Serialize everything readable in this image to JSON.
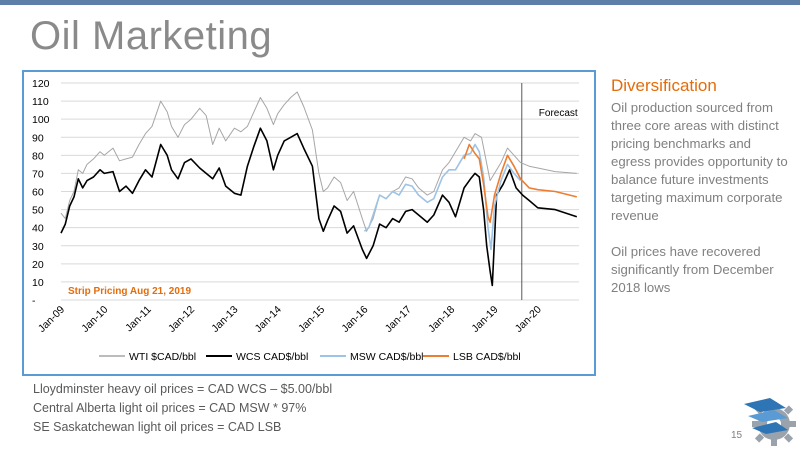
{
  "slide": {
    "title": "Oil Marketing",
    "page_number": "15",
    "colors": {
      "accent": "#e46c0a",
      "frame": "#5b9bd5",
      "top_rule": "#5b7fa6"
    }
  },
  "sidebar": {
    "heading": "Diversification",
    "paragraph1": "Oil production sourced from three core areas with distinct pricing benchmarks and egress provides opportunity to balance future investments targeting maximum corporate revenue",
    "paragraph2": "Oil prices have recovered significantly from December 2018 lows"
  },
  "footnotes": [
    "Lloydminster heavy oil prices = CAD WCS – $5.00/bbl",
    "Central Alberta light oil prices = CAD MSW * 97%",
    "SE Saskatchewan light oil prices = CAD LSB"
  ],
  "chart_data": {
    "type": "line",
    "yticks": [
      0,
      10,
      20,
      30,
      40,
      50,
      60,
      70,
      80,
      90,
      100,
      110,
      120
    ],
    "ytick_labels": [
      "-",
      "10",
      "20",
      "30",
      "40",
      "50",
      "60",
      "70",
      "80",
      "90",
      "100",
      "110",
      "120"
    ],
    "ylim": [
      0,
      120
    ],
    "xlim": [
      2009.0,
      2020.95
    ],
    "xticks": [
      {
        "x": 2009.0,
        "label": "Jan-09"
      },
      {
        "x": 2010.0,
        "label": "Jan-10"
      },
      {
        "x": 2011.0,
        "label": "Jan-11"
      },
      {
        "x": 2012.0,
        "label": "Jan-12"
      },
      {
        "x": 2013.0,
        "label": "Jan-13"
      },
      {
        "x": 2014.0,
        "label": "Jan-14"
      },
      {
        "x": 2015.0,
        "label": "Jan-15"
      },
      {
        "x": 2016.0,
        "label": "Jan-16"
      },
      {
        "x": 2017.0,
        "label": "Jan-17"
      },
      {
        "x": 2018.0,
        "label": "Jan-18"
      },
      {
        "x": 2019.0,
        "label": "Jan-19"
      },
      {
        "x": 2020.0,
        "label": "Jan-20"
      }
    ],
    "grid": true,
    "forecast_line_x": 2019.63,
    "forecast_label": "Forecast",
    "strip_label": "Strip Pricing Aug 21, 2019",
    "legend_position": "bottom",
    "series": [
      {
        "name": "WTI $CAD/bbl",
        "color": "#a6a6a6",
        "width": 1,
        "points": [
          [
            2009.0,
            48
          ],
          [
            2009.1,
            45
          ],
          [
            2009.2,
            55
          ],
          [
            2009.3,
            60
          ],
          [
            2009.4,
            72
          ],
          [
            2009.5,
            70
          ],
          [
            2009.6,
            75
          ],
          [
            2009.75,
            78
          ],
          [
            2009.9,
            82
          ],
          [
            2010.0,
            80
          ],
          [
            2010.2,
            84
          ],
          [
            2010.35,
            77
          ],
          [
            2010.5,
            78
          ],
          [
            2010.65,
            79
          ],
          [
            2010.8,
            86
          ],
          [
            2010.95,
            92
          ],
          [
            2011.1,
            96
          ],
          [
            2011.3,
            110
          ],
          [
            2011.45,
            104
          ],
          [
            2011.55,
            96
          ],
          [
            2011.7,
            90
          ],
          [
            2011.85,
            97
          ],
          [
            2012.0,
            100
          ],
          [
            2012.2,
            106
          ],
          [
            2012.35,
            102
          ],
          [
            2012.5,
            86
          ],
          [
            2012.65,
            95
          ],
          [
            2012.8,
            88
          ],
          [
            2013.0,
            95
          ],
          [
            2013.15,
            93
          ],
          [
            2013.3,
            96
          ],
          [
            2013.45,
            104
          ],
          [
            2013.6,
            112
          ],
          [
            2013.75,
            106
          ],
          [
            2013.9,
            97
          ],
          [
            2014.0,
            103
          ],
          [
            2014.15,
            108
          ],
          [
            2014.3,
            112
          ],
          [
            2014.45,
            115
          ],
          [
            2014.6,
            107
          ],
          [
            2014.8,
            94
          ],
          [
            2014.95,
            70
          ],
          [
            2015.05,
            60
          ],
          [
            2015.15,
            62
          ],
          [
            2015.3,
            68
          ],
          [
            2015.45,
            65
          ],
          [
            2015.6,
            55
          ],
          [
            2015.75,
            60
          ],
          [
            2015.95,
            45
          ],
          [
            2016.05,
            38
          ],
          [
            2016.2,
            45
          ],
          [
            2016.35,
            58
          ],
          [
            2016.5,
            56
          ],
          [
            2016.65,
            60
          ],
          [
            2016.8,
            62
          ],
          [
            2016.95,
            68
          ],
          [
            2017.1,
            67
          ],
          [
            2017.25,
            62
          ],
          [
            2017.45,
            58
          ],
          [
            2017.6,
            60
          ],
          [
            2017.8,
            72
          ],
          [
            2017.95,
            76
          ],
          [
            2018.1,
            82
          ],
          [
            2018.3,
            90
          ],
          [
            2018.45,
            88
          ],
          [
            2018.55,
            92
          ],
          [
            2018.7,
            90
          ],
          [
            2018.8,
            78
          ],
          [
            2018.9,
            66
          ],
          [
            2019.0,
            70
          ],
          [
            2019.15,
            76
          ],
          [
            2019.3,
            84
          ],
          [
            2019.45,
            80
          ],
          [
            2019.6,
            76
          ],
          [
            2019.8,
            74
          ],
          [
            2020.0,
            73
          ],
          [
            2020.4,
            71
          ],
          [
            2020.9,
            70
          ]
        ]
      },
      {
        "name": "WCS CAD$/bbl",
        "color": "#000000",
        "width": 1.6,
        "points": [
          [
            2009.0,
            37
          ],
          [
            2009.1,
            42
          ],
          [
            2009.2,
            52
          ],
          [
            2009.3,
            57
          ],
          [
            2009.4,
            67
          ],
          [
            2009.5,
            62
          ],
          [
            2009.6,
            66
          ],
          [
            2009.75,
            68
          ],
          [
            2009.9,
            72
          ],
          [
            2010.0,
            70
          ],
          [
            2010.2,
            71
          ],
          [
            2010.35,
            60
          ],
          [
            2010.5,
            63
          ],
          [
            2010.65,
            59
          ],
          [
            2010.8,
            66
          ],
          [
            2010.95,
            72
          ],
          [
            2011.1,
            68
          ],
          [
            2011.3,
            86
          ],
          [
            2011.45,
            80
          ],
          [
            2011.55,
            72
          ],
          [
            2011.7,
            67
          ],
          [
            2011.85,
            76
          ],
          [
            2012.0,
            78
          ],
          [
            2012.2,
            73
          ],
          [
            2012.35,
            70
          ],
          [
            2012.5,
            67
          ],
          [
            2012.65,
            73
          ],
          [
            2012.8,
            63
          ],
          [
            2013.0,
            59
          ],
          [
            2013.15,
            58
          ],
          [
            2013.3,
            74
          ],
          [
            2013.45,
            85
          ],
          [
            2013.6,
            95
          ],
          [
            2013.75,
            88
          ],
          [
            2013.9,
            72
          ],
          [
            2014.0,
            80
          ],
          [
            2014.15,
            88
          ],
          [
            2014.3,
            90
          ],
          [
            2014.45,
            92
          ],
          [
            2014.6,
            84
          ],
          [
            2014.8,
            74
          ],
          [
            2014.95,
            45
          ],
          [
            2015.05,
            38
          ],
          [
            2015.15,
            44
          ],
          [
            2015.3,
            52
          ],
          [
            2015.45,
            49
          ],
          [
            2015.6,
            37
          ],
          [
            2015.75,
            41
          ],
          [
            2015.95,
            28
          ],
          [
            2016.05,
            23
          ],
          [
            2016.2,
            30
          ],
          [
            2016.35,
            42
          ],
          [
            2016.5,
            40
          ],
          [
            2016.65,
            45
          ],
          [
            2016.8,
            43
          ],
          [
            2016.95,
            49
          ],
          [
            2017.1,
            50
          ],
          [
            2017.25,
            47
          ],
          [
            2017.45,
            43
          ],
          [
            2017.6,
            47
          ],
          [
            2017.8,
            58
          ],
          [
            2017.95,
            54
          ],
          [
            2018.1,
            46
          ],
          [
            2018.3,
            62
          ],
          [
            2018.45,
            67
          ],
          [
            2018.55,
            70
          ],
          [
            2018.65,
            68
          ],
          [
            2018.75,
            50
          ],
          [
            2018.82,
            30
          ],
          [
            2018.9,
            16
          ],
          [
            2018.95,
            8
          ],
          [
            2019.05,
            58
          ],
          [
            2019.2,
            64
          ],
          [
            2019.35,
            72
          ],
          [
            2019.5,
            62
          ],
          [
            2019.65,
            58
          ],
          [
            2019.8,
            55
          ],
          [
            2020.0,
            51
          ],
          [
            2020.4,
            50
          ],
          [
            2020.9,
            46
          ]
        ]
      },
      {
        "name": "MSW CAD$/bbl",
        "color": "#9dc3e6",
        "width": 1.6,
        "points": [
          [
            2016.0,
            38
          ],
          [
            2016.1,
            40
          ],
          [
            2016.2,
            47
          ],
          [
            2016.35,
            58
          ],
          [
            2016.5,
            56
          ],
          [
            2016.65,
            60
          ],
          [
            2016.8,
            58
          ],
          [
            2016.95,
            64
          ],
          [
            2017.1,
            63
          ],
          [
            2017.25,
            58
          ],
          [
            2017.45,
            54
          ],
          [
            2017.6,
            56
          ],
          [
            2017.8,
            68
          ],
          [
            2017.95,
            72
          ],
          [
            2018.1,
            72
          ],
          [
            2018.3,
            80
          ],
          [
            2018.45,
            81
          ],
          [
            2018.55,
            86
          ],
          [
            2018.65,
            82
          ],
          [
            2018.75,
            68
          ],
          [
            2018.85,
            40
          ],
          [
            2018.92,
            28
          ],
          [
            2019.0,
            52
          ],
          [
            2019.15,
            66
          ],
          [
            2019.3,
            75
          ],
          [
            2019.45,
            70
          ],
          [
            2019.6,
            66
          ]
        ]
      },
      {
        "name": "LSB CAD$/bbl",
        "color": "#ed7d31",
        "width": 1.6,
        "points": [
          [
            2018.3,
            78
          ],
          [
            2018.42,
            86
          ],
          [
            2018.55,
            81
          ],
          [
            2018.65,
            78
          ],
          [
            2018.75,
            64
          ],
          [
            2018.85,
            46
          ],
          [
            2018.9,
            43
          ],
          [
            2019.0,
            58
          ],
          [
            2019.15,
            70
          ],
          [
            2019.3,
            80
          ],
          [
            2019.45,
            74
          ],
          [
            2019.6,
            67
          ],
          [
            2019.8,
            62
          ],
          [
            2020.0,
            61
          ],
          [
            2020.4,
            60
          ],
          [
            2020.9,
            57
          ]
        ]
      }
    ]
  }
}
